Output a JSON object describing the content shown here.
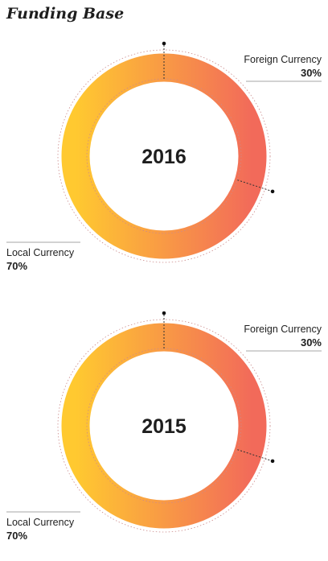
{
  "title": "Funding Base",
  "chart_data": [
    {
      "type": "pie",
      "center_label": "2016",
      "slices": [
        {
          "label": "Foreign Currency",
          "value": 30,
          "display": "30%"
        },
        {
          "label": "Local Currency",
          "value": 70,
          "display": "70%"
        }
      ]
    },
    {
      "type": "pie",
      "center_label": "2015",
      "slices": [
        {
          "label": "Foreign Currency",
          "value": 30,
          "display": "30%"
        },
        {
          "label": "Local Currency",
          "value": 70,
          "display": "70%"
        }
      ]
    }
  ],
  "colors": {
    "gradient_start": "#ffc930",
    "gradient_end": "#f26a5a",
    "dotted_guides": "#cc8a8a",
    "leader_lines": "#888888"
  }
}
